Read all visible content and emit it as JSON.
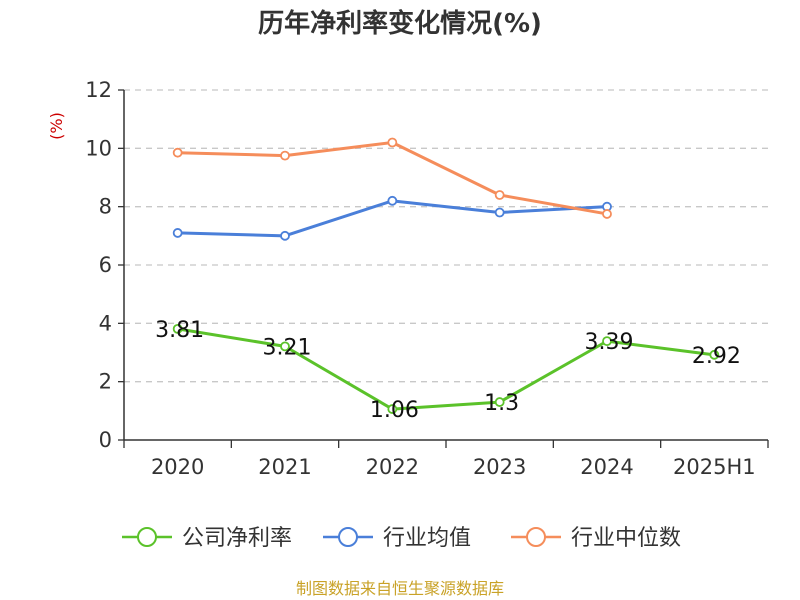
{
  "chart_data": {
    "type": "line",
    "title": "历年净利率变化情况(%)",
    "ylabel": "(%)",
    "ylim": [
      0,
      12
    ],
    "yticks": [
      0,
      2,
      4,
      6,
      8,
      10,
      12
    ],
    "categories": [
      "2020",
      "2021",
      "2022",
      "2023",
      "2024",
      "2025H1"
    ],
    "grid": true,
    "legend_position": "bottom",
    "series": [
      {
        "name": "公司净利率",
        "color": "#5bc22a",
        "values": [
          3.81,
          3.21,
          1.06,
          1.3,
          3.39,
          2.92
        ],
        "labels": [
          "3.81",
          "3.21",
          "1.06",
          "1.3",
          "3.39",
          "2.92"
        ]
      },
      {
        "name": "行业均值",
        "color": "#4a7fd9",
        "values": [
          7.1,
          7.0,
          8.2,
          7.8,
          8.0,
          null
        ]
      },
      {
        "name": "行业中位数",
        "color": "#f58d5b",
        "values": [
          9.85,
          9.75,
          10.2,
          8.4,
          7.75,
          null
        ]
      }
    ]
  },
  "footer": {
    "source": "制图数据来自恒生聚源数据库"
  }
}
